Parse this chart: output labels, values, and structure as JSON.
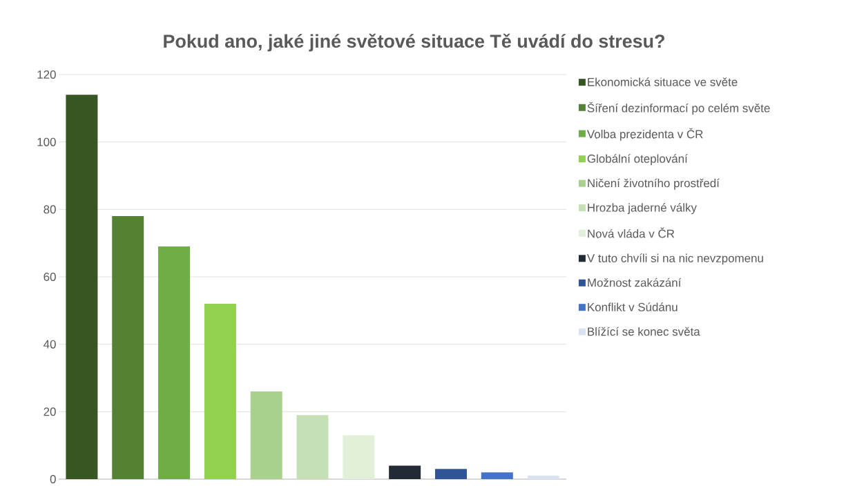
{
  "chart_data": {
    "type": "bar",
    "title": "Pokud ano, jaké jiné světové situace Tě uvádí do stresu?",
    "categories": [
      null,
      null,
      null,
      null,
      null,
      null,
      null,
      null,
      null,
      null,
      null
    ],
    "series": [
      {
        "name": "Ekonomická situace ve světe",
        "color": "#375623",
        "values": [
          114,
          null,
          null,
          null,
          null,
          null,
          null,
          null,
          null,
          null,
          null
        ]
      },
      {
        "name": "Šíření dezinformací po celém světe",
        "color": "#548235",
        "values": [
          null,
          78,
          null,
          null,
          null,
          null,
          null,
          null,
          null,
          null,
          null
        ]
      },
      {
        "name": "Volba prezidenta v ČR",
        "color": "#70ad47",
        "values": [
          null,
          null,
          69,
          null,
          null,
          null,
          null,
          null,
          null,
          null,
          null
        ]
      },
      {
        "name": "Globální oteplování",
        "color": "#92d050",
        "values": [
          null,
          null,
          null,
          52,
          null,
          null,
          null,
          null,
          null,
          null,
          null
        ]
      },
      {
        "name": "Ničení životního prostředí",
        "color": "#a9d18e",
        "values": [
          null,
          null,
          null,
          null,
          26,
          null,
          null,
          null,
          null,
          null,
          null
        ]
      },
      {
        "name": "Hrozba jaderné války",
        "color": "#c5e0b4",
        "values": [
          null,
          null,
          null,
          null,
          null,
          19,
          null,
          null,
          null,
          null,
          null
        ]
      },
      {
        "name": "Nová vláda v ČR",
        "color": "#e2f0d9",
        "values": [
          null,
          null,
          null,
          null,
          null,
          null,
          13,
          null,
          null,
          null,
          null
        ]
      },
      {
        "name": "V tuto chvíli si na nic nevzpomenu",
        "color": "#222a35",
        "values": [
          null,
          null,
          null,
          null,
          null,
          null,
          null,
          4,
          null,
          null,
          null
        ]
      },
      {
        "name": "Možnost zakázání",
        "color": "#2f5597",
        "values": [
          null,
          null,
          null,
          null,
          null,
          null,
          null,
          null,
          3,
          null,
          null
        ]
      },
      {
        "name": "Konflikt v Súdánu",
        "color": "#4472c4",
        "values": [
          null,
          null,
          null,
          null,
          null,
          null,
          null,
          null,
          null,
          2,
          null
        ]
      },
      {
        "name": "Blížící se konec světa",
        "color": "#dae3f3",
        "values": [
          null,
          null,
          null,
          null,
          null,
          null,
          null,
          null,
          null,
          null,
          1
        ]
      }
    ],
    "ylim": [
      0,
      120
    ],
    "yticks": [
      0,
      20,
      40,
      60,
      80,
      100,
      120
    ],
    "grid": "y",
    "legend": "right"
  }
}
